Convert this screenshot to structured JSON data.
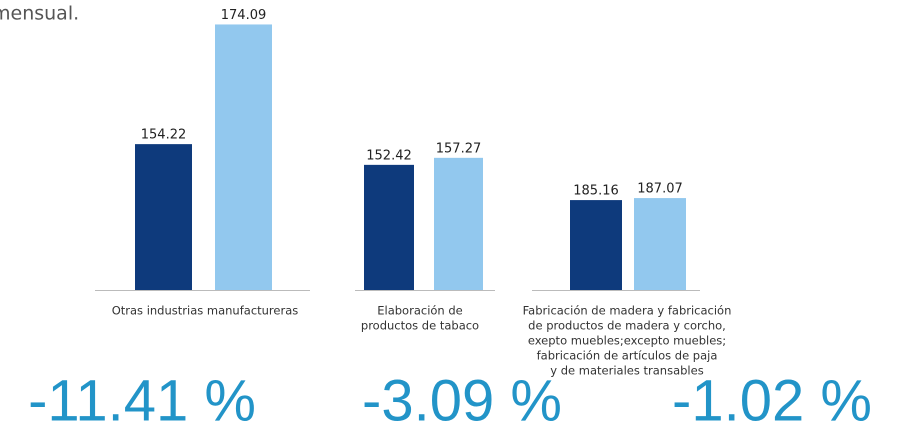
{
  "subtitle": "mensual.",
  "chart_data": [
    {
      "type": "bar",
      "values": [
        154.22,
        174.09
      ],
      "colors": [
        "#0e3a7c",
        "#92c8ee"
      ],
      "ylim": [
        130,
        174
      ],
      "xlabel": [
        "Otras industrias manufactureras"
      ],
      "annotation": "-11.41 %"
    },
    {
      "type": "bar",
      "values": [
        152.42,
        157.27
      ],
      "colors": [
        "#0e3a7c",
        "#92c8ee"
      ],
      "ylim": [
        66,
        249
      ],
      "xlabel": [
        "Elaboración de",
        "productos de tabaco"
      ],
      "annotation": "-3.09 %"
    },
    {
      "type": "bar",
      "values": [
        185.16,
        187.07
      ],
      "colors": [
        "#0e3a7c",
        "#92c8ee"
      ],
      "ylim": [
        100,
        351
      ],
      "xlabel": [
        "Fabricación de madera y fabricación",
        "de productos de madera y corcho,",
        "exepto muebles;excepto muebles;",
        "fabricación de artículos de paja",
        "y de materiales transables"
      ],
      "annotation": "-1.02 %"
    }
  ]
}
